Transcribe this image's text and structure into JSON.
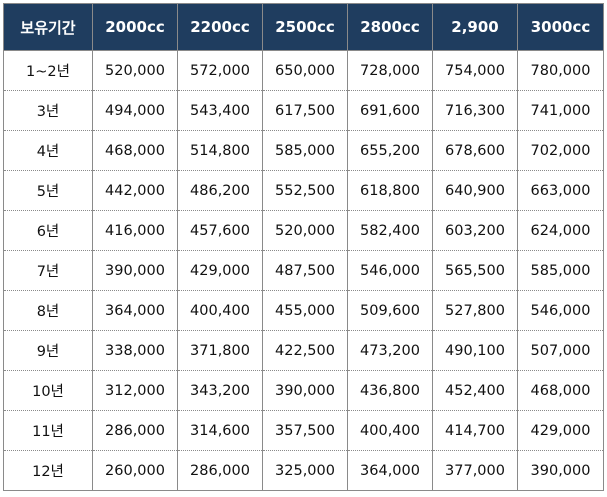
{
  "table": {
    "headers": [
      "보유기간",
      "2000cc",
      "2200cc",
      "2500cc",
      "2800cc",
      "2,900",
      "3000cc"
    ],
    "rows": [
      [
        "1~2년",
        "520,000",
        "572,000",
        "650,000",
        "728,000",
        "754,000",
        "780,000"
      ],
      [
        "3년",
        "494,000",
        "543,400",
        "617,500",
        "691,600",
        "716,300",
        "741,000"
      ],
      [
        "4년",
        "468,000",
        "514,800",
        "585,000",
        "655,200",
        "678,600",
        "702,000"
      ],
      [
        "5년",
        "442,000",
        "486,200",
        "552,500",
        "618,800",
        "640,900",
        "663,000"
      ],
      [
        "6년",
        "416,000",
        "457,600",
        "520,000",
        "582,400",
        "603,200",
        "624,000"
      ],
      [
        "7년",
        "390,000",
        "429,000",
        "487,500",
        "546,000",
        "565,500",
        "585,000"
      ],
      [
        "8년",
        "364,000",
        "400,400",
        "455,000",
        "509,600",
        "527,800",
        "546,000"
      ],
      [
        "9년",
        "338,000",
        "371,800",
        "422,500",
        "473,200",
        "490,100",
        "507,000"
      ],
      [
        "10년",
        "312,000",
        "343,200",
        "390,000",
        "436,800",
        "452,400",
        "468,000"
      ],
      [
        "11년",
        "286,000",
        "314,600",
        "357,500",
        "400,400",
        "414,700",
        "429,000"
      ],
      [
        "12년",
        "260,000",
        "286,000",
        "325,000",
        "364,000",
        "377,000",
        "390,000"
      ]
    ]
  },
  "colors": {
    "header_bg": "#1f3d5f",
    "header_text": "#ffffff",
    "grid": "#8a8a8a"
  }
}
